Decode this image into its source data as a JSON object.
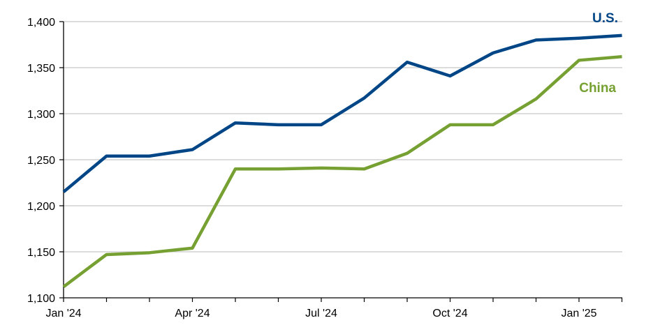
{
  "chart_data": {
    "type": "line",
    "title": "",
    "xlabel": "",
    "ylabel": "",
    "x": [
      "Jan '24",
      "Feb '24",
      "Mar '24",
      "Apr '24",
      "May '24",
      "Jun '24",
      "Jul '24",
      "Aug '24",
      "Sep '24",
      "Oct '24",
      "Nov '24",
      "Dec '24",
      "Jan '25",
      "Feb '25"
    ],
    "x_tick_labels": [
      "Jan '24",
      "Apr '24",
      "Jul '24",
      "Oct '24",
      "Jan '25"
    ],
    "ylim": [
      1100,
      1400
    ],
    "y_ticks": [
      1100,
      1150,
      1200,
      1250,
      1300,
      1350,
      1400
    ],
    "y_tick_labels": [
      "1,100",
      "1,150",
      "1,200",
      "1,250",
      "1,300",
      "1,350",
      "1,400"
    ],
    "grid": "horizontal",
    "series": [
      {
        "name": "U.S.",
        "color": "#004687",
        "values": [
          1215,
          1254,
          1254,
          1261,
          1290,
          1288,
          1288,
          1317,
          1356,
          1341,
          1366,
          1380,
          1382,
          1385
        ]
      },
      {
        "name": "China",
        "color": "#76A132",
        "values": [
          1112,
          1147,
          1149,
          1154,
          1240,
          1240,
          1241,
          1240,
          1257,
          1288,
          1288,
          1316,
          1358,
          1362
        ]
      }
    ]
  }
}
